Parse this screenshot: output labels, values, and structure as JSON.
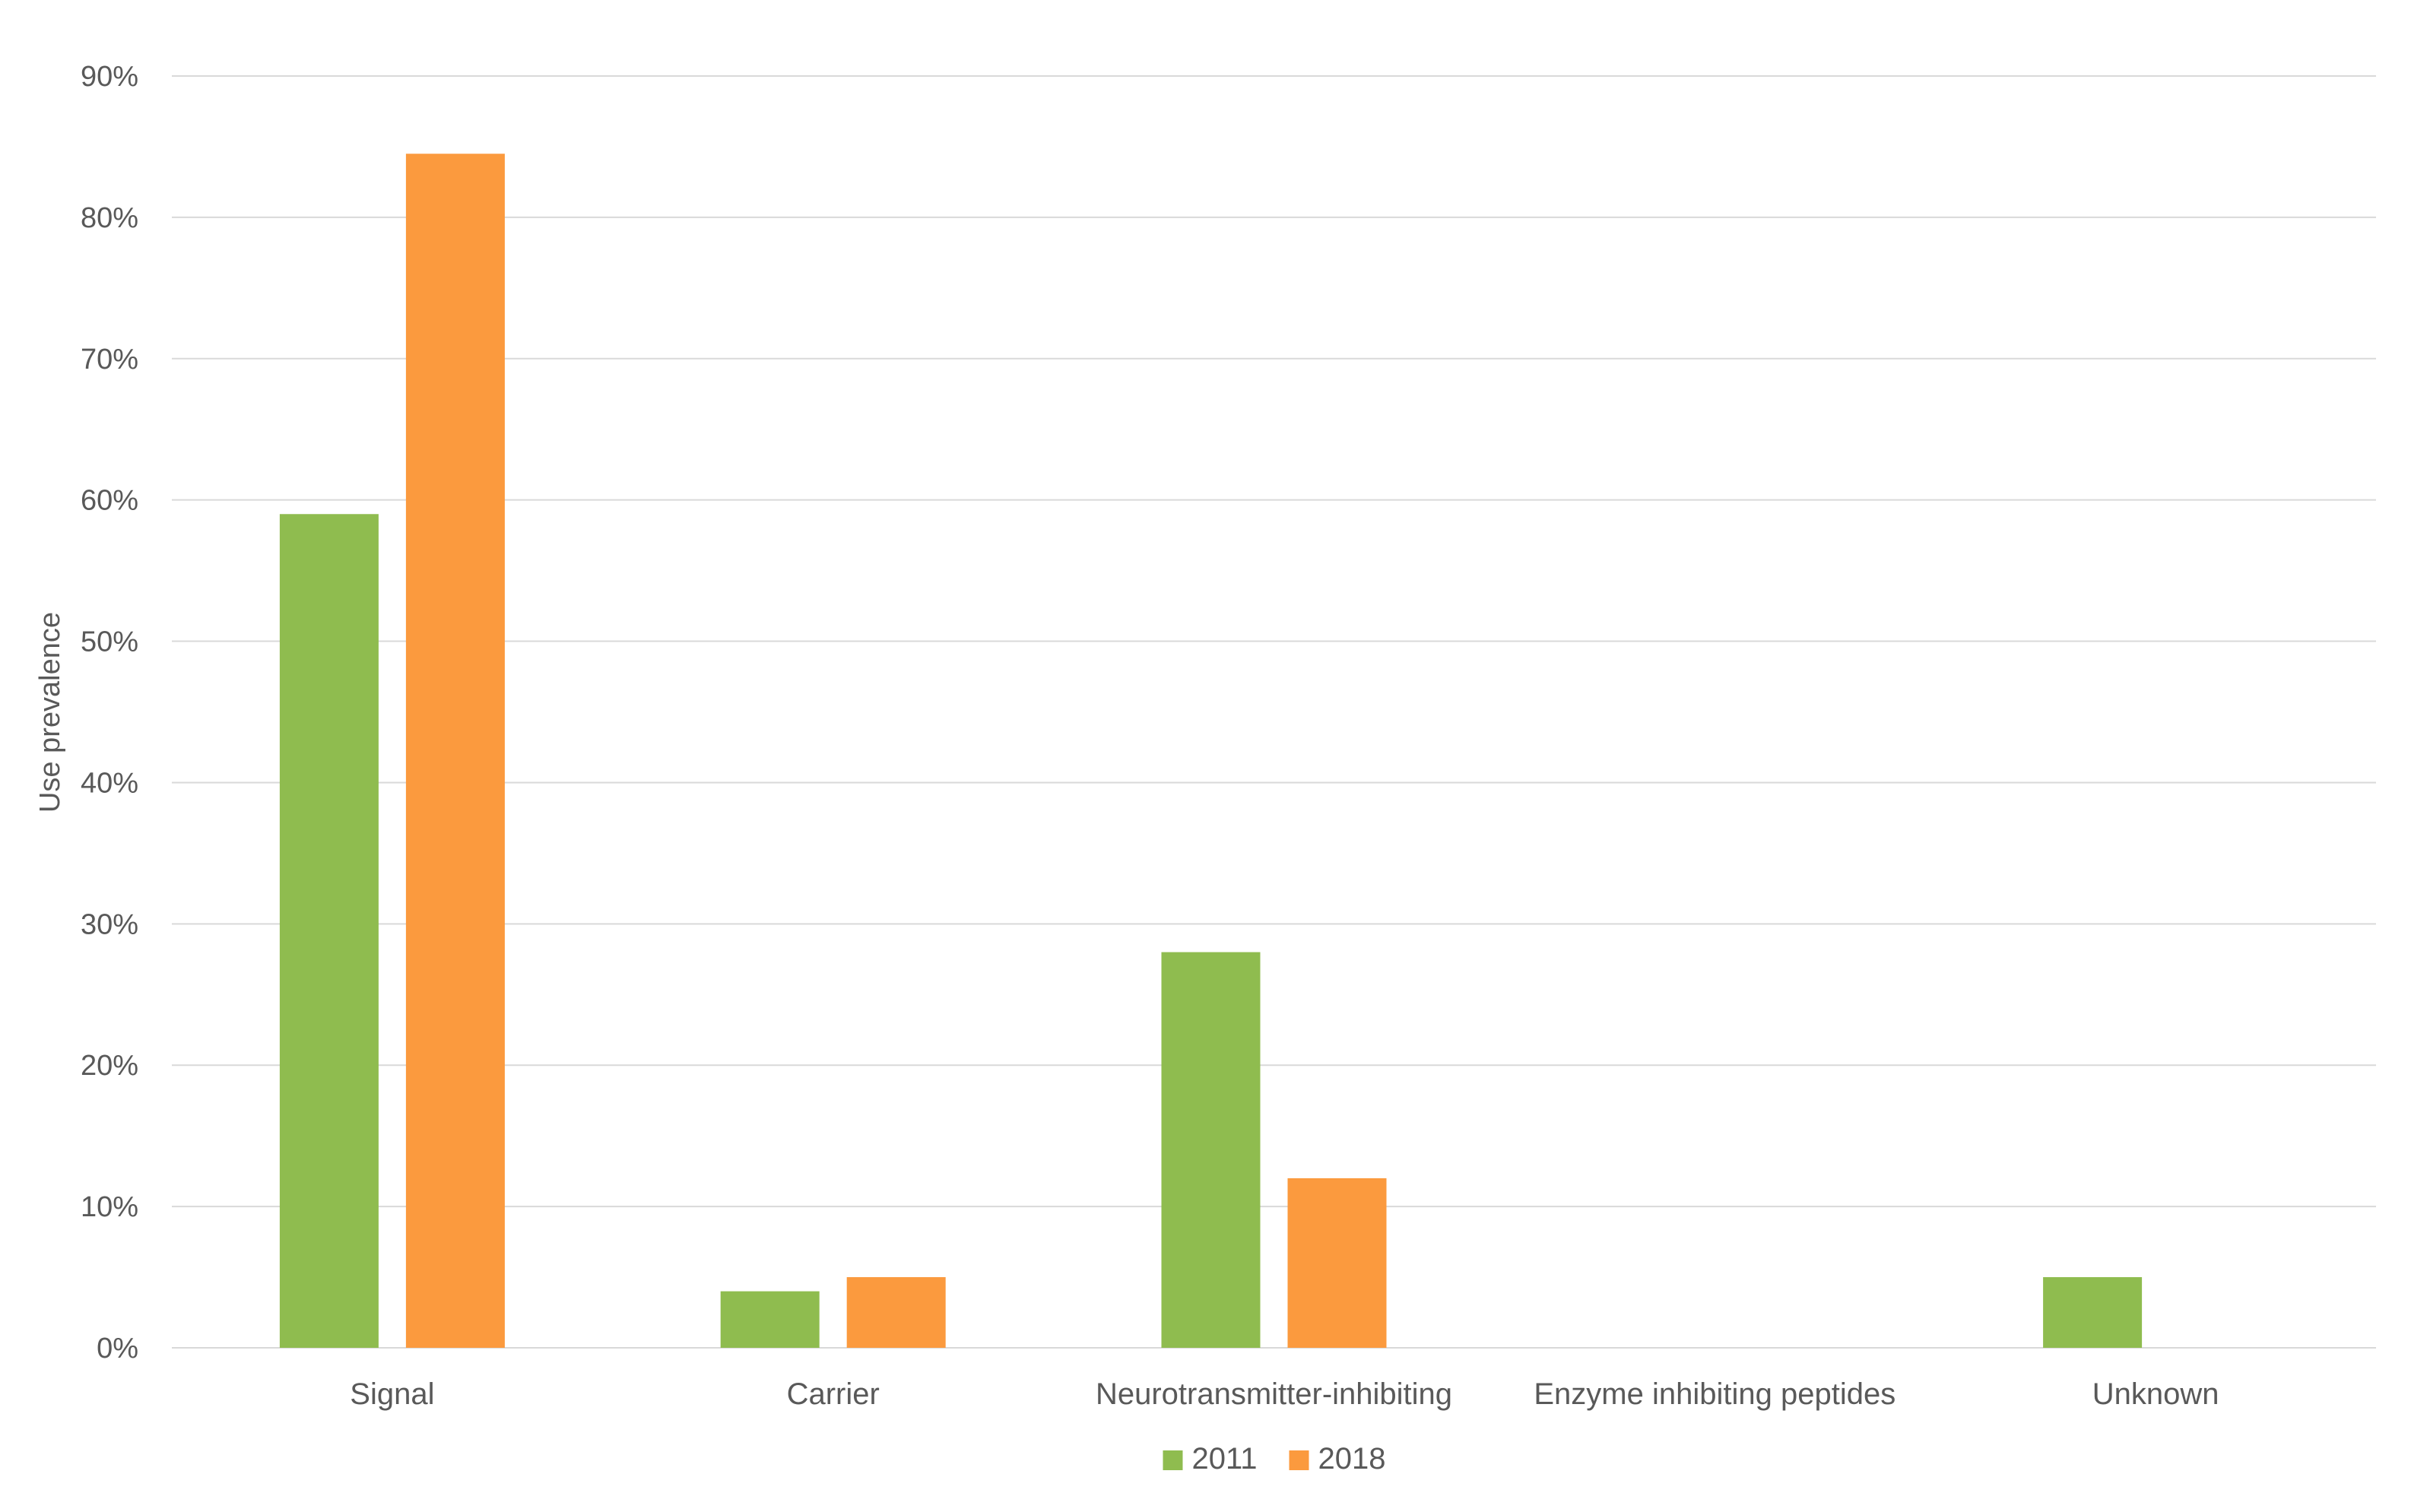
{
  "chart_data": {
    "type": "bar",
    "title": "",
    "xlabel": "",
    "ylabel": "Use prevalence",
    "categories": [
      "Signal",
      "Carrier",
      "Neurotransmitter-inhibiting",
      "Enzyme inhibiting peptides",
      "Unknown"
    ],
    "series": [
      {
        "name": "2011",
        "color": "#8fbc4f",
        "values": [
          59,
          4,
          28,
          0,
          5
        ]
      },
      {
        "name": "2018",
        "color": "#fb9a3e",
        "values": [
          84.5,
          5,
          12,
          0,
          0
        ]
      }
    ],
    "ylim": [
      0,
      90
    ],
    "yticks": [
      0,
      10,
      20,
      30,
      40,
      50,
      60,
      70,
      80,
      90
    ],
    "ytick_labels": [
      "0%",
      "10%",
      "20%",
      "30%",
      "40%",
      "50%",
      "60%",
      "70%",
      "80%",
      "90%"
    ],
    "grid": true,
    "legend_position": "bottom-center",
    "gridline_color": "#d9d9d9",
    "text_color": "#595959"
  }
}
